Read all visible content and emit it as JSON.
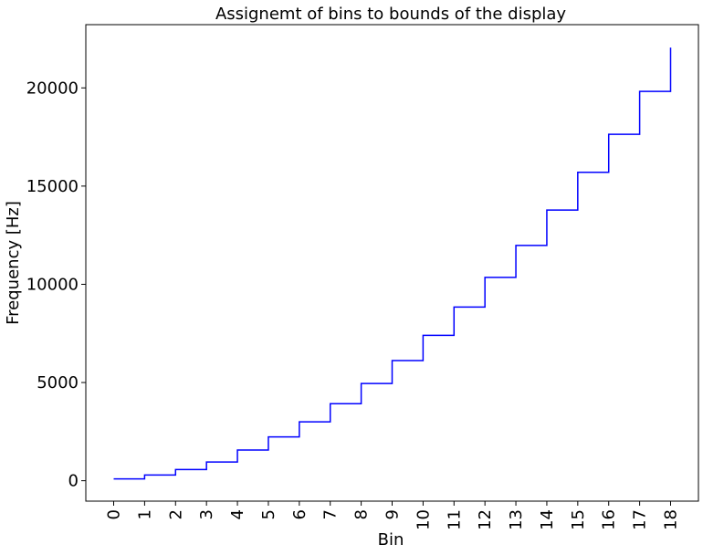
{
  "chart_data": {
    "type": "line",
    "drawstyle": "steps-post",
    "title": "Assignemt of bins to bounds of the display",
    "xlabel": "Bin",
    "ylabel": "Frequency [Hz]",
    "x": [
      0,
      1,
      2,
      3,
      4,
      5,
      6,
      7,
      8,
      9,
      10,
      11,
      12,
      13,
      14,
      15,
      16,
      17,
      18
    ],
    "series": [
      {
        "color": "#0000ff",
        "values": [
          90,
          290,
          570,
          950,
          1560,
          2230,
          3000,
          3920,
          4950,
          6120,
          7400,
          8840,
          10350,
          11980,
          13780,
          15700,
          17640,
          19820,
          22050
        ]
      }
    ],
    "xticks": [
      "0",
      "1",
      "2",
      "3",
      "4",
      "5",
      "6",
      "7",
      "8",
      "9",
      "10",
      "11",
      "12",
      "13",
      "14",
      "15",
      "16",
      "17",
      "18"
    ],
    "yticks": [
      0,
      5000,
      10000,
      15000,
      20000
    ],
    "ytick_labels": [
      "0",
      "5000",
      "10000",
      "15000",
      "20000"
    ],
    "xlim": [
      -0.9,
      18.9
    ],
    "ylim": [
      -1040,
      23220
    ],
    "grid": false,
    "legend": "none",
    "xtick_rotation": "vertical"
  }
}
